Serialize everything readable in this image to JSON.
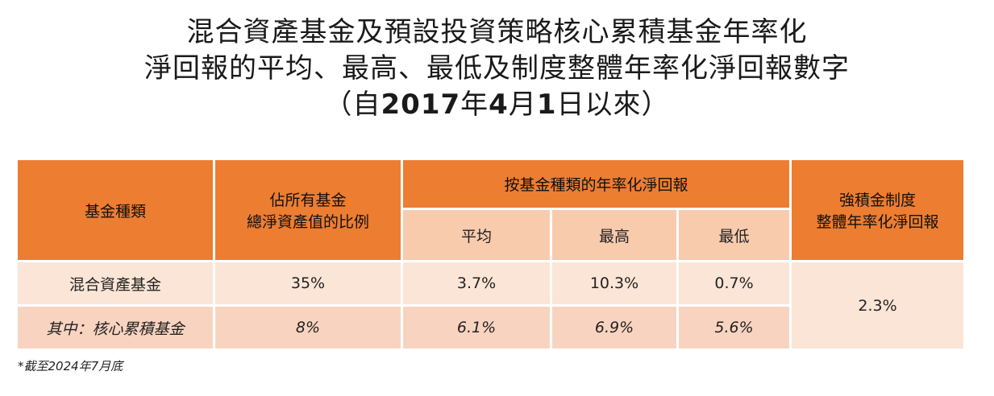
{
  "title": {
    "line1": "混合資產基金及預設投資策略核心累積基金年率化",
    "line2": "淨回報的平均、最高、最低及制度整體年率化淨回報數字",
    "line3_prefix": "（自",
    "line3_year": "2017",
    "line3_year_suffix": "年",
    "line3_month": "4",
    "line3_month_suffix": "月",
    "line3_day": "1",
    "line3_suffix": "日以來）"
  },
  "table": {
    "headers": {
      "fund_type": "基金種類",
      "share_line1": "佔所有基金",
      "share_line2": "總淨資產值的比例",
      "return_group": "按基金種類的年率化淨回報",
      "mpf_line1": "強積金制度",
      "mpf_line2": "整體年率化淨回報",
      "avg": "平均",
      "max": "最高",
      "min": "最低"
    },
    "rows": [
      {
        "fund": "混合資產基金",
        "share": "35%",
        "avg": "3.7%",
        "max": "10.3%",
        "min": "0.7%"
      },
      {
        "fund": "其中：核心累積基金",
        "share": "8%",
        "avg": "6.1%",
        "max": "6.9%",
        "min": "5.6%"
      }
    ],
    "mpf_value": "2.3%"
  },
  "footnote": "*截至2024年7月底",
  "colors": {
    "header": "#ed7d31",
    "subheader": "#f8cbad",
    "row_light": "#fbe5d6",
    "row_dark": "#f8d4c0"
  }
}
